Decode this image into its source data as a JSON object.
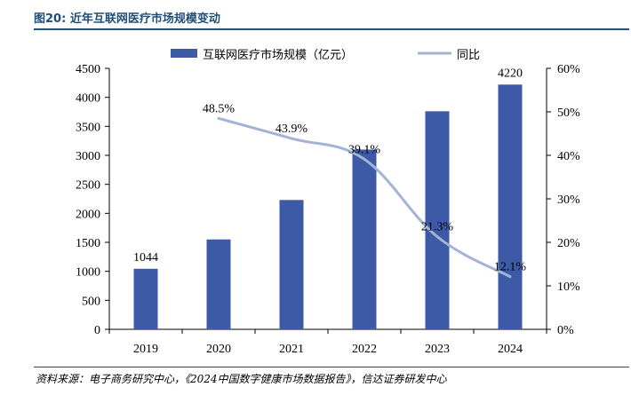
{
  "title": "图20: 近年互联网医疗市场规模变动",
  "source": "资料来源：电子商务研究中心，《2024中国数字健康市场数据报告》，信达证券研发中心",
  "colors": {
    "bar": "#3c5aa6",
    "line": "#a3b3d6",
    "title": "#1f4e79"
  },
  "chart_data": {
    "type": "bar",
    "categories": [
      "2019",
      "2020",
      "2021",
      "2022",
      "2023",
      "2024"
    ],
    "series": [
      {
        "name": "互联网医疗市场规模（亿元）",
        "type": "bar",
        "axis": "left",
        "values": [
          1044,
          1550,
          2230,
          3100,
          3760,
          4220
        ],
        "labels": [
          "1044",
          "",
          "",
          "",
          "",
          "4220"
        ]
      },
      {
        "name": "同比",
        "type": "line",
        "axis": "right",
        "values": [
          null,
          48.5,
          43.9,
          39.1,
          21.3,
          12.1
        ],
        "labels": [
          "",
          "48.5%",
          "43.9%",
          "39.1%",
          "21.3%",
          "12.1%"
        ]
      }
    ],
    "y_left": {
      "range": [
        0,
        4500
      ],
      "ticks": [
        "0",
        "500",
        "1000",
        "1500",
        "2000",
        "2500",
        "3000",
        "3500",
        "4000",
        "4500"
      ]
    },
    "y_right": {
      "range": [
        0,
        60
      ],
      "ticks": [
        "0%",
        "10%",
        "20%",
        "30%",
        "40%",
        "50%",
        "60%"
      ]
    },
    "legend_position": "top",
    "grid": false
  }
}
